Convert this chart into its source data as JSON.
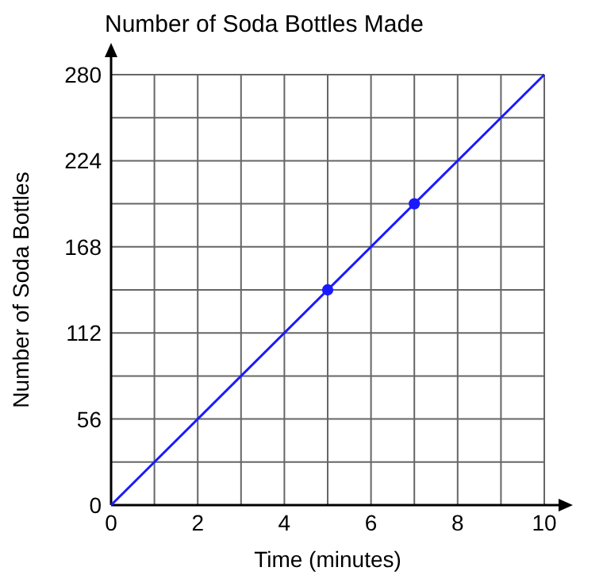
{
  "chart_data": {
    "type": "line",
    "title": "Number of Soda Bottles Made",
    "xlabel": "Time (minutes)",
    "ylabel": "Number of Soda Bottles",
    "xlim": [
      0,
      10
    ],
    "ylim": [
      0,
      280
    ],
    "xticks": [
      0,
      {
        "value": 1,
        "label": null
      },
      2,
      {
        "value": 3,
        "label": null
      },
      4,
      {
        "value": 5,
        "label": null
      },
      6,
      {
        "value": 7,
        "label": null
      },
      8,
      {
        "value": 9,
        "label": null
      },
      10
    ],
    "yticks": [
      0,
      {
        "value": 28,
        "label": null
      },
      56,
      {
        "value": 84,
        "label": null
      },
      112,
      {
        "value": 140,
        "label": null
      },
      168,
      {
        "value": 196,
        "label": null
      },
      224,
      {
        "value": 252,
        "label": null
      },
      280
    ],
    "grid": true,
    "marker": "none",
    "series": [
      {
        "color": "#1a1aff",
        "x": [
          0,
          10
        ],
        "values": [
          0,
          280
        ]
      },
      {
        "type": "scatter",
        "color": "#1a1aff",
        "marker": "circle",
        "x": [
          5,
          7
        ],
        "values": [
          140,
          196
        ]
      }
    ]
  }
}
